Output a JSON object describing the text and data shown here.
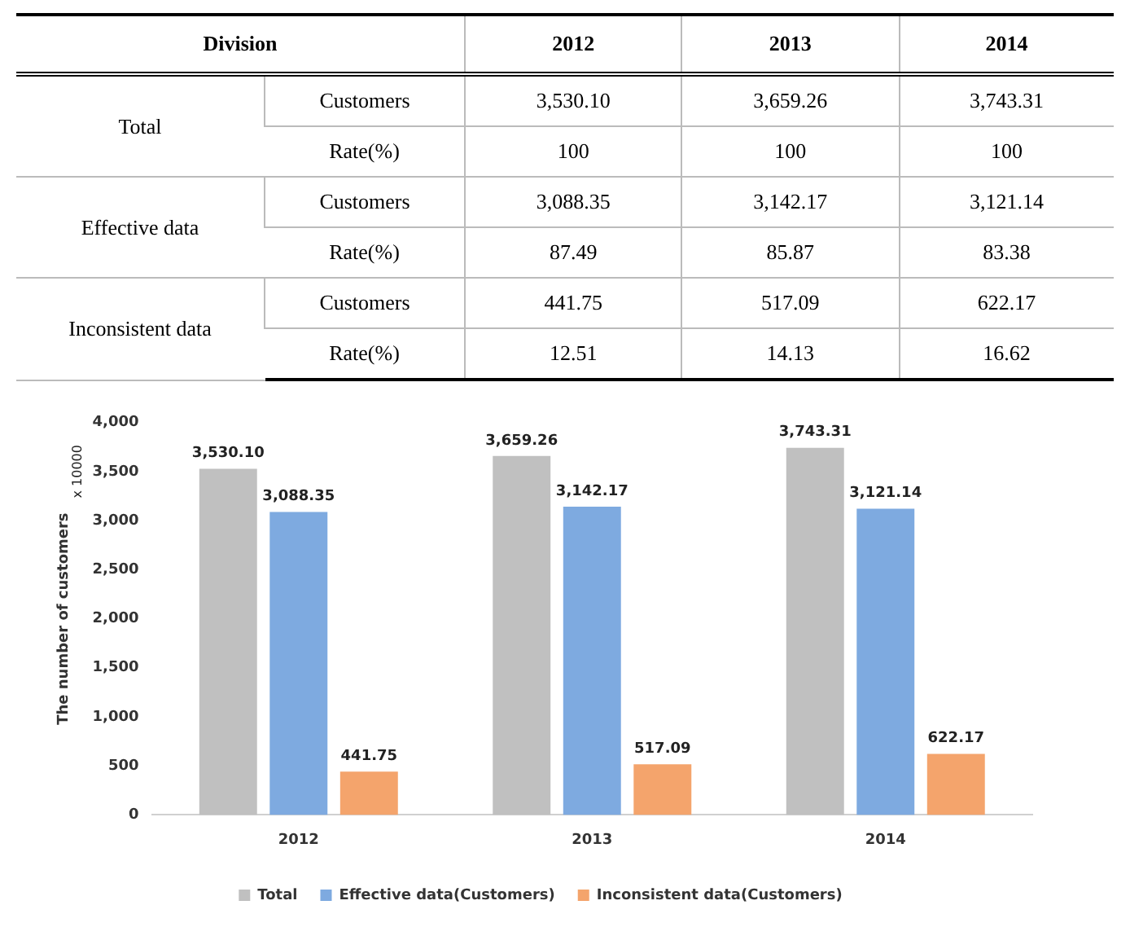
{
  "chart_data": [
    {
      "type": "other",
      "categories": [
        "Division",
        "2012",
        "2013",
        "2014"
      ],
      "y_categories": [
        "Total",
        "Effective  data",
        "Inconsistent  data"
      ],
      "y2_categories": [
        "Customers",
        "Rate(%)",
        "Customers",
        "Rate(%)",
        "Customers",
        "Rate(%)"
      ],
      "cell_labels": [
        [
          "3,530.10",
          "3,659.26",
          "3,743.31"
        ],
        [
          "100",
          "100",
          "100"
        ],
        [
          "3,088.35",
          "3,142.17",
          "3,121.14"
        ],
        [
          "87.49",
          "85.87",
          "83.38"
        ],
        [
          "441.75",
          "517.09",
          "622.17"
        ],
        [
          "12.51",
          "14.13",
          "16.62"
        ]
      ]
    },
    {
      "type": "bar",
      "categories": [
        "2012",
        "2013",
        "2014"
      ],
      "ylabel": "The number of customers",
      "annotations": [
        "x 10000"
      ],
      "ylim": [
        0,
        4000
      ],
      "yticks": [
        {
          "value": 0,
          "label": "0"
        },
        {
          "value": 500,
          "label": "500"
        },
        {
          "value": 1000,
          "label": "1,000"
        },
        {
          "value": 1500,
          "label": "1,500"
        },
        {
          "value": 2000,
          "label": "2,000"
        },
        {
          "value": 2500,
          "label": "2,500"
        },
        {
          "value": 3000,
          "label": "3,000"
        },
        {
          "value": 3500,
          "label": "3,500"
        },
        {
          "value": 4000,
          "label": "4,000"
        }
      ],
      "legend": "bottom",
      "series": [
        {
          "name": "Total",
          "color": "#c0c0c0",
          "values": [
            3530.1,
            3659.26,
            3743.31
          ],
          "value_labels": [
            "3,530.10",
            "3,659.26",
            "3,743.31"
          ]
        },
        {
          "name": "Effective data(Customers)",
          "color": "#7eaae0",
          "values": [
            3088.35,
            3142.17,
            3121.14
          ],
          "value_labels": [
            "3,088.35",
            "3,142.17",
            "3,121.14"
          ]
        },
        {
          "name": "Inconsistent data(Customers)",
          "color": "#f4a46c",
          "values": [
            441.75,
            517.09,
            622.17
          ],
          "value_labels": [
            "441.75",
            "517.09",
            "622.17"
          ]
        }
      ]
    }
  ]
}
